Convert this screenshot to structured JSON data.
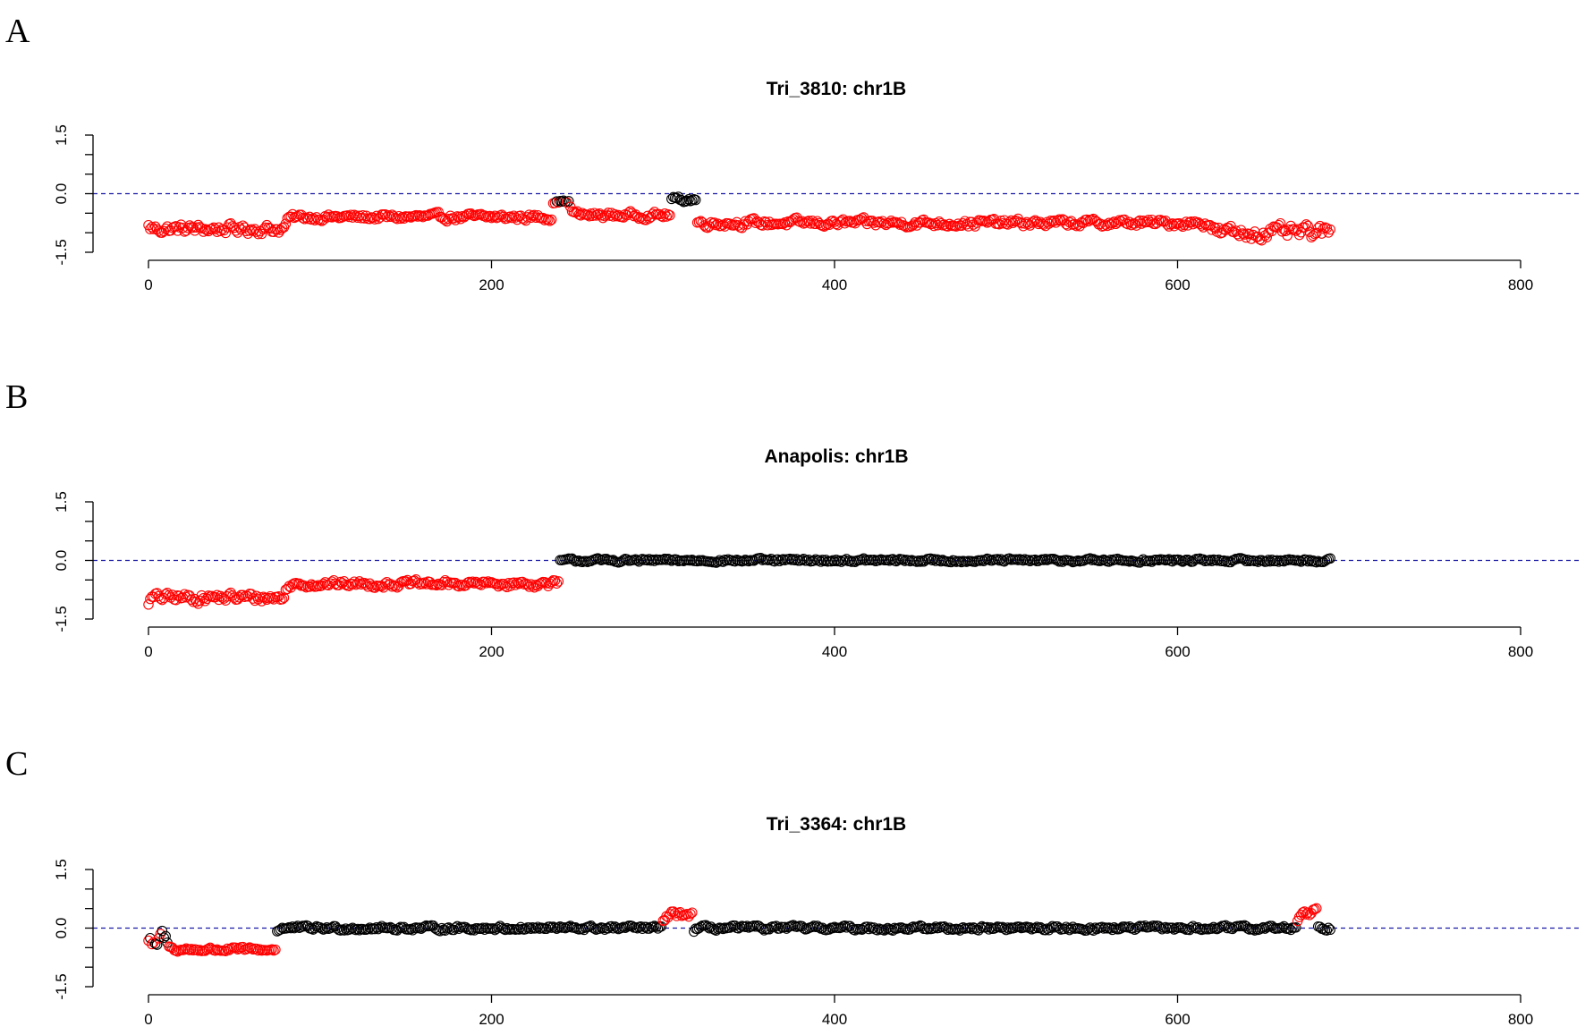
{
  "figure": {
    "panel_labels": [
      "A",
      "B",
      "C"
    ],
    "colors": {
      "deviating": "#ff0000",
      "normal": "#000000",
      "reference_line": "#1a1aa6"
    }
  },
  "chart_data": [
    {
      "type": "scatter",
      "panel": "A",
      "title": "Tri_3810: chr1B",
      "xlim": [
        0,
        800
      ],
      "ylim": [
        -1.5,
        1.5
      ],
      "xticks": [
        0,
        200,
        400,
        600,
        800
      ],
      "yticks": [
        -1.5,
        0.0,
        1.5
      ],
      "ytick_labels": [
        "-1.5",
        "0.0",
        "1.5"
      ],
      "reference_line": 0.0,
      "n_points": 690,
      "segments": [
        {
          "x": [
            0,
            80
          ],
          "y_mean": -0.9,
          "spread": 0.22,
          "color": "red"
        },
        {
          "x": [
            80,
            236
          ],
          "y_mean": -0.6,
          "spread": 0.15,
          "color": "red"
        },
        {
          "x": [
            236,
            246
          ],
          "y_mean": -0.2,
          "spread": 0.06,
          "color": "black"
        },
        {
          "x": [
            246,
            305
          ],
          "y_mean": -0.55,
          "spread": 0.15,
          "color": "red"
        },
        {
          "x": [
            305,
            320
          ],
          "y_mean": -0.15,
          "spread": 0.12,
          "color": "black"
        },
        {
          "x": [
            320,
            620
          ],
          "y_mean": -0.75,
          "spread": 0.17,
          "color": "red"
        },
        {
          "x": [
            620,
            690
          ],
          "y_mean": -1.0,
          "spread": 0.3,
          "color": "red"
        }
      ]
    },
    {
      "type": "scatter",
      "panel": "B",
      "title": "Anapolis: chr1B",
      "xlim": [
        0,
        800
      ],
      "ylim": [
        -1.5,
        1.5
      ],
      "xticks": [
        0,
        200,
        400,
        600,
        800
      ],
      "yticks": [
        -1.5,
        0.0,
        1.5
      ],
      "ytick_labels": [
        "-1.5",
        "0.0",
        "1.5"
      ],
      "reference_line": 0.0,
      "n_points": 690,
      "segments": [
        {
          "x": [
            0,
            80
          ],
          "y_mean": -0.95,
          "spread": 0.22,
          "color": "red"
        },
        {
          "x": [
            80,
            240
          ],
          "y_mean": -0.6,
          "spread": 0.15,
          "color": "red"
        },
        {
          "x": [
            240,
            690
          ],
          "y_mean": 0.0,
          "spread": 0.08,
          "color": "black"
        }
      ]
    },
    {
      "type": "scatter",
      "panel": "C",
      "title": "Tri_3364: chr1B",
      "xlim": [
        0,
        800
      ],
      "ylim": [
        -1.5,
        1.5
      ],
      "xticks": [
        0,
        200,
        400,
        600,
        800
      ],
      "yticks": [
        -1.5,
        0.0,
        1.5
      ],
      "ytick_labels": [
        "-1.5",
        "0.0",
        "1.5"
      ],
      "reference_line": 0.0,
      "n_points": 690,
      "segments": [
        {
          "x": [
            0,
            12
          ],
          "y_mean": -0.3,
          "spread": 0.35,
          "color": "mixed"
        },
        {
          "x": [
            12,
            75
          ],
          "y_mean": -0.55,
          "spread": 0.1,
          "color": "red"
        },
        {
          "x": [
            75,
            690
          ],
          "y_mean": 0.0,
          "spread": 0.1,
          "color": "black"
        },
        {
          "x": [
            300,
            318
          ],
          "y_mean": 0.35,
          "spread": 0.15,
          "color": "red"
        },
        {
          "x": [
            670,
            682
          ],
          "y_mean": 0.45,
          "spread": 0.2,
          "color": "red"
        }
      ]
    }
  ]
}
